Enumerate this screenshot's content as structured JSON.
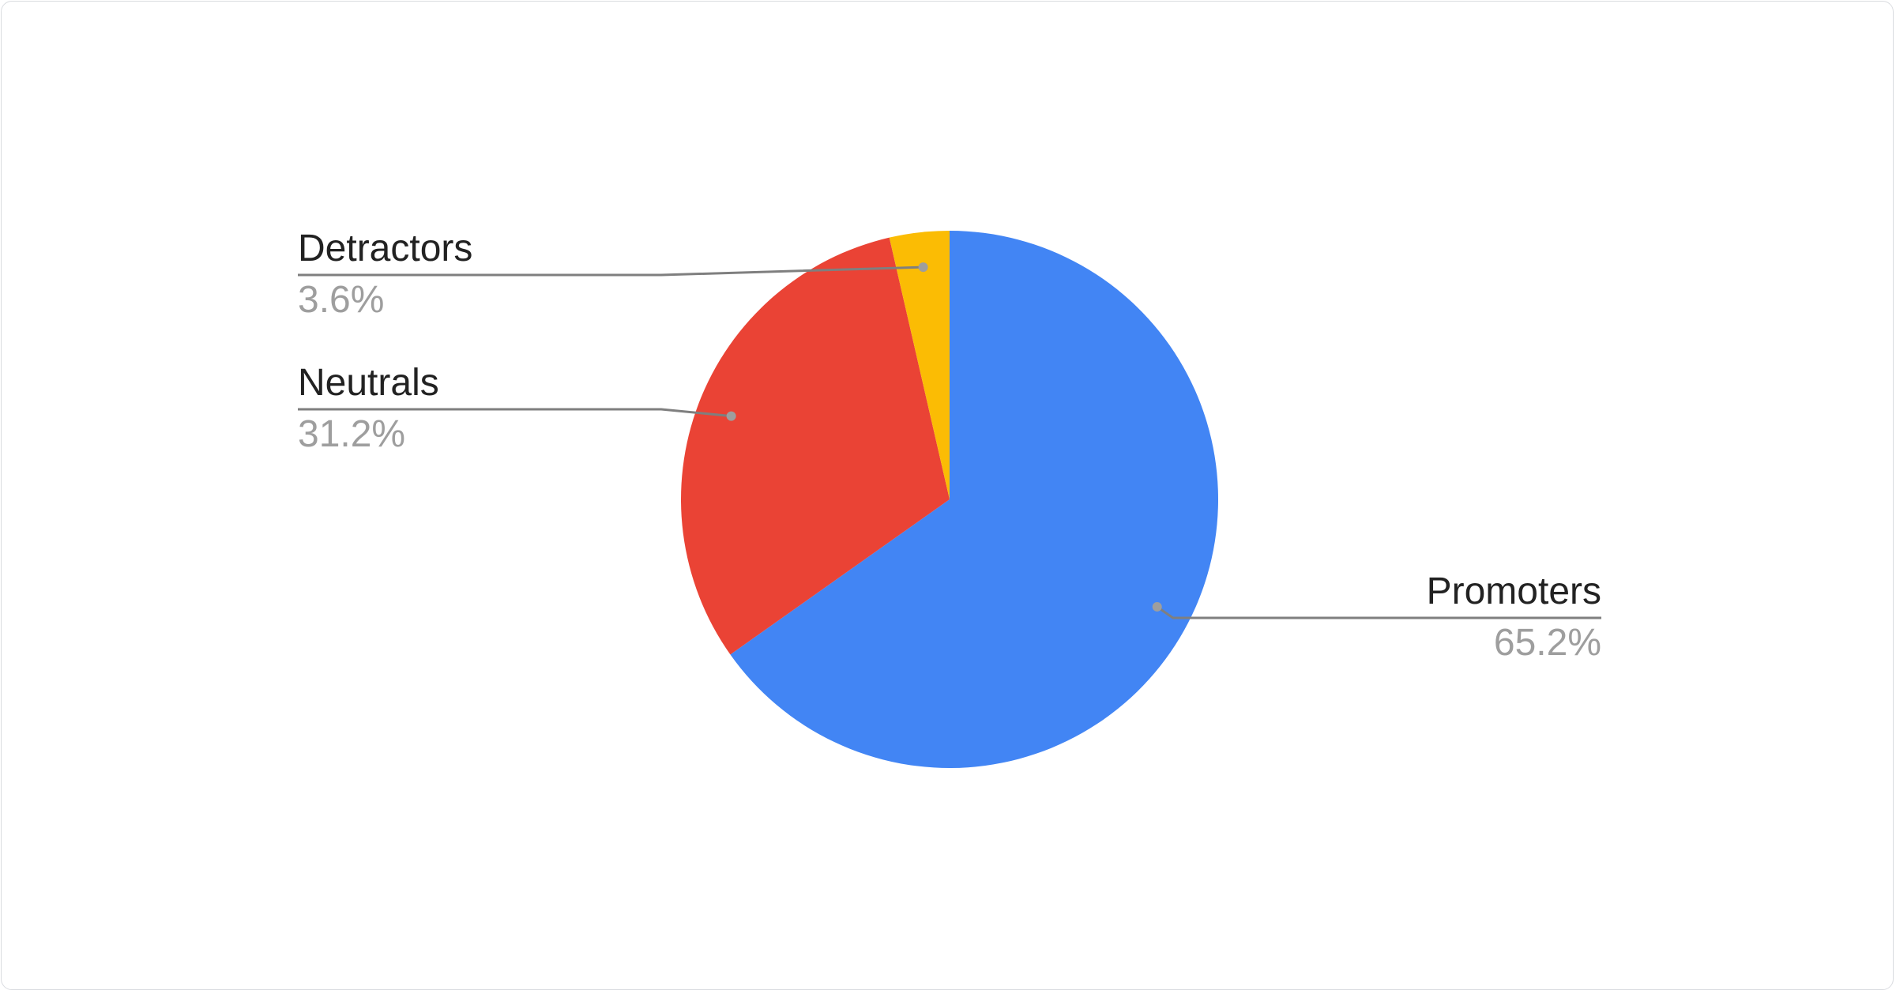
{
  "chart_data": {
    "type": "pie",
    "title": "",
    "start_angle": "top, clockwise",
    "slices": [
      {
        "name": "Promoters",
        "value": 65.2,
        "label": "65.2%",
        "color": "#4285F4"
      },
      {
        "name": "Neutrals",
        "value": 31.2,
        "label": "31.2%",
        "color": "#EA4335"
      },
      {
        "name": "Detractors",
        "value": 3.6,
        "label": "3.6%",
        "color": "#FBBC04"
      }
    ],
    "legend": "labeled callouts",
    "leader_line_color": "#7f7f7f"
  }
}
